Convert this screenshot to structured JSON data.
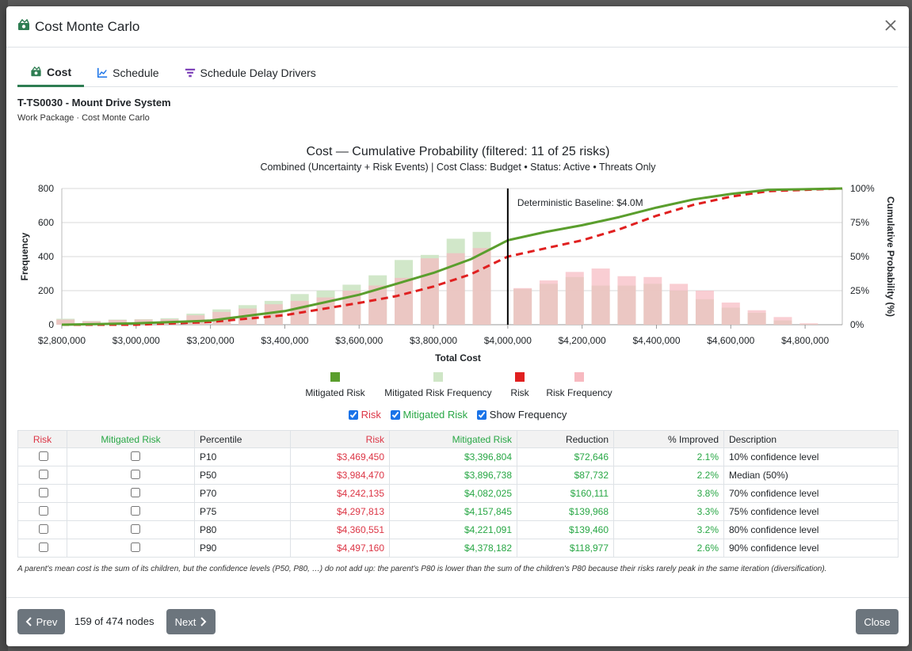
{
  "modal": {
    "title": "Cost Monte Carlo",
    "close_icon": "close-icon"
  },
  "tabs": [
    {
      "label": "Cost",
      "icon": "money-icon",
      "active": true
    },
    {
      "label": "Schedule",
      "icon": "chart-line-icon",
      "active": false
    },
    {
      "label": "Schedule Delay Drivers",
      "icon": "funnel-icon",
      "active": false
    }
  ],
  "node": {
    "title": "T-TS0030 - Mount Drive System",
    "subtitle": "Work Package · Cost Monte Carlo"
  },
  "chart_data": {
    "type": "bar",
    "title": "Cost — Cumulative Probability (filtered: 11 of 25 risks)",
    "subtitle": "Combined (Uncertainty + Risk Events) | Cost Class: Budget  •  Status: Active  •  Threats Only",
    "xlabel": "Total Cost",
    "ylabel": "Frequency",
    "y2label": "Cumulative Probability (%)",
    "ylim": [
      0,
      800
    ],
    "y2lim": [
      0,
      100
    ],
    "xlim": [
      2800000,
      4900000
    ],
    "x_ticks": [
      {
        "value": 2800000,
        "label": "$2,800,000"
      },
      {
        "value": 3000000,
        "label": "$3,000,000"
      },
      {
        "value": 3200000,
        "label": "$3,200,000"
      },
      {
        "value": 3400000,
        "label": "$3,400,000"
      },
      {
        "value": 3600000,
        "label": "$3,600,000"
      },
      {
        "value": 3800000,
        "label": "$3,800,000"
      },
      {
        "value": 4000000,
        "label": "$4,000,000"
      },
      {
        "value": 4200000,
        "label": "$4,200,000"
      },
      {
        "value": 4400000,
        "label": "$4,400,000"
      },
      {
        "value": 4600000,
        "label": "$4,600,000"
      },
      {
        "value": 4800000,
        "label": "$4,800,000"
      }
    ],
    "y_ticks": [
      {
        "value": 0,
        "label": "0"
      },
      {
        "value": 200,
        "label": "200"
      },
      {
        "value": 400,
        "label": "400"
      },
      {
        "value": 600,
        "label": "600"
      },
      {
        "value": 800,
        "label": "800"
      }
    ],
    "y2_ticks": [
      {
        "value": 0,
        "label": "0%"
      },
      {
        "value": 25,
        "label": "25%"
      },
      {
        "value": 50,
        "label": "50%"
      },
      {
        "value": 75,
        "label": "75%"
      },
      {
        "value": 100,
        "label": "100%"
      }
    ],
    "bins": [
      2810000,
      2880000,
      2950000,
      3020000,
      3090000,
      3160000,
      3230000,
      3300000,
      3370000,
      3440000,
      3510000,
      3580000,
      3650000,
      3720000,
      3790000,
      3860000,
      3930000,
      4040000,
      4110000,
      4180000,
      4250000,
      4320000,
      4390000,
      4460000,
      4530000,
      4600000,
      4670000,
      4740000,
      4810000
    ],
    "series": [
      {
        "name": "Mitigated Risk Frequency",
        "color": "#cfe6c6",
        "values": [
          35,
          22,
          30,
          32,
          38,
          65,
          90,
          115,
          140,
          180,
          200,
          235,
          290,
          380,
          410,
          505,
          545,
          210,
          240,
          280,
          230,
          230,
          240,
          200,
          150,
          100,
          70,
          25,
          5
        ]
      },
      {
        "name": "Risk Frequency",
        "color": "#f7b9c0",
        "values": [
          30,
          20,
          28,
          30,
          32,
          55,
          75,
          95,
          120,
          140,
          160,
          200,
          230,
          275,
          390,
          420,
          450,
          215,
          260,
          310,
          330,
          285,
          280,
          240,
          200,
          130,
          85,
          45,
          8
        ]
      },
      {
        "name": "Mitigated Risk",
        "type": "line",
        "color": "#5a9e2d",
        "x": [
          2800000,
          3000000,
          3200000,
          3400000,
          3600000,
          3700000,
          3800000,
          3900000,
          4000000,
          4100000,
          4200000,
          4300000,
          4400000,
          4500000,
          4600000,
          4700000,
          4900000
        ],
        "values": [
          0,
          1,
          3,
          10,
          22,
          30,
          38,
          48,
          62,
          68,
          73,
          79,
          86,
          92,
          96,
          99,
          100
        ]
      },
      {
        "name": "Risk",
        "type": "line",
        "color": "#e02020",
        "x": [
          2800000,
          3000000,
          3200000,
          3400000,
          3600000,
          3700000,
          3800000,
          3900000,
          4000000,
          4100000,
          4200000,
          4300000,
          4400000,
          4500000,
          4600000,
          4700000,
          4900000
        ],
        "values": [
          0,
          0,
          2,
          7,
          16,
          21,
          28,
          37,
          50,
          56,
          62,
          70,
          80,
          88,
          94,
          98,
          100
        ]
      }
    ],
    "annotation": {
      "x": 4000000,
      "label": "Deterministic Baseline: $4.0M"
    },
    "legend": {
      "placement": "bottom",
      "items": [
        {
          "label": "Mitigated Risk",
          "color": "#5a9e2d"
        },
        {
          "label": "Mitigated Risk Frequency",
          "color": "#cfe6c6"
        },
        {
          "label": "Risk",
          "color": "#e02020"
        },
        {
          "label": "Risk Frequency",
          "color": "#f7b9c0"
        }
      ]
    }
  },
  "toggles": [
    {
      "label": "Risk",
      "checked": true,
      "color": "#dc3545"
    },
    {
      "label": "Mitigated Risk",
      "checked": true,
      "color": "#28a745"
    },
    {
      "label": "Show Frequency",
      "checked": true,
      "color": "#212529"
    }
  ],
  "table": {
    "headers": [
      "Risk",
      "Mitigated Risk",
      "Percentile",
      "Risk",
      "Mitigated Risk",
      "Reduction",
      "% Improved",
      "Description"
    ],
    "rows": [
      {
        "percentile": "P10",
        "risk": "$3,469,450",
        "mitigated": "$3,396,804",
        "reduction": "$72,646",
        "improved": "2.1%",
        "description": "10% confidence level"
      },
      {
        "percentile": "P50",
        "risk": "$3,984,470",
        "mitigated": "$3,896,738",
        "reduction": "$87,732",
        "improved": "2.2%",
        "description": "Median (50%)"
      },
      {
        "percentile": "P70",
        "risk": "$4,242,135",
        "mitigated": "$4,082,025",
        "reduction": "$160,111",
        "improved": "3.8%",
        "description": "70% confidence level"
      },
      {
        "percentile": "P75",
        "risk": "$4,297,813",
        "mitigated": "$4,157,845",
        "reduction": "$139,968",
        "improved": "3.3%",
        "description": "75% confidence level"
      },
      {
        "percentile": "P80",
        "risk": "$4,360,551",
        "mitigated": "$4,221,091",
        "reduction": "$139,460",
        "improved": "3.2%",
        "description": "80% confidence level"
      },
      {
        "percentile": "P90",
        "risk": "$4,497,160",
        "mitigated": "$4,378,182",
        "reduction": "$118,977",
        "improved": "2.6%",
        "description": "90% confidence level"
      }
    ]
  },
  "note": "A parent's mean cost is the sum of its children, but the confidence levels (P50, P80, …) do not add up: the parent's P80 is lower than the sum of the children's P80 because their risks rarely peak in the same iteration (diversification).",
  "footer": {
    "prev_label": "Prev",
    "count_text": "159 of 474 nodes",
    "next_label": "Next",
    "close_label": "Close"
  }
}
